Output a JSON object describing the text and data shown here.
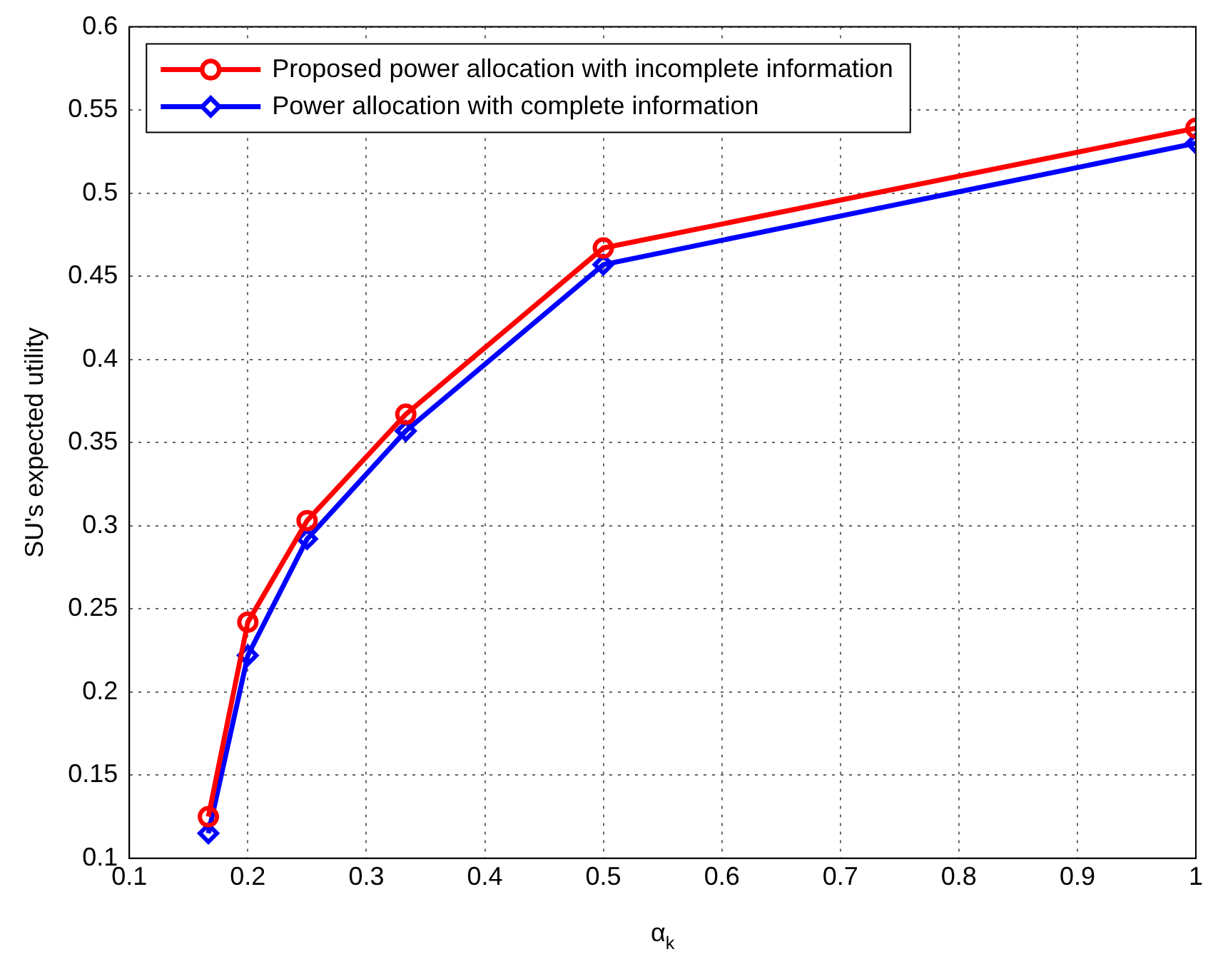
{
  "chart_data": {
    "type": "line",
    "xlabel": "α$_{k}$",
    "ylabel": "SU's expected utility",
    "x": [
      0.1667,
      0.2,
      0.25,
      0.3333,
      0.5,
      1
    ],
    "series": [
      {
        "name": "Proposed power allocation with incomplete information",
        "color": "#ff0000",
        "marker": "circle",
        "values": [
          0.125,
          0.242,
          0.303,
          0.367,
          0.467,
          0.539
        ]
      },
      {
        "name": "Power allocation with complete information",
        "color": "#0000ff",
        "marker": "diamond",
        "values": [
          0.115,
          0.222,
          0.292,
          0.357,
          0.457,
          0.53
        ]
      }
    ],
    "xlim": [
      0.1,
      1
    ],
    "xticks": [
      0.1,
      0.2,
      0.3,
      0.4,
      0.5,
      0.6,
      0.7,
      0.8,
      0.9,
      1
    ],
    "ylim": [
      0.1,
      0.6
    ],
    "yticks": [
      0.1,
      0.15,
      0.2,
      0.25,
      0.3,
      0.35,
      0.4,
      0.45,
      0.5,
      0.55,
      0.6
    ],
    "grid": true,
    "legend": "top left",
    "line_style": "solid"
  }
}
